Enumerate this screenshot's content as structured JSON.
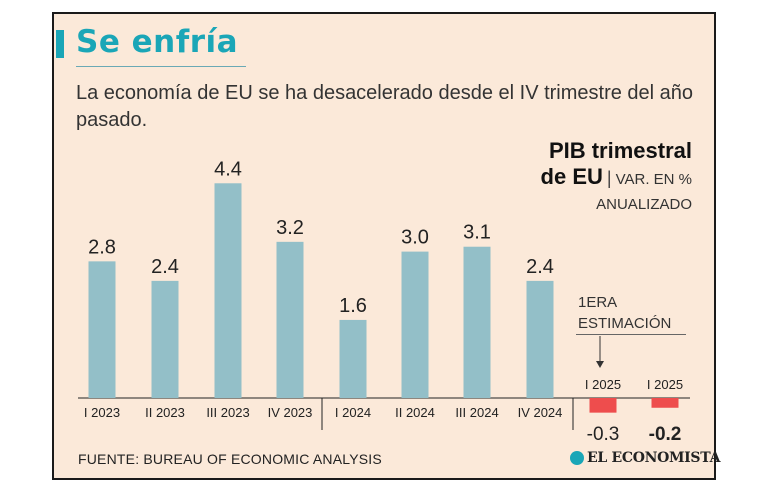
{
  "header": {
    "title": "Se enfría",
    "subtitle": "La economía de EU se ha desacelerado desde el IV trimestre del año pasado."
  },
  "legend": {
    "line1": "PIB trimestral",
    "line2_bold": "de EU",
    "separator": "|",
    "line2_small": "VAR. EN %",
    "line3": "ANUALIZADO"
  },
  "annotation": {
    "line1": "1ERA",
    "line2": "ESTIMACIÓN"
  },
  "footer": {
    "source": "FUENTE: BUREAU OF ECONOMIC ANALYSIS",
    "logo": "EL ECONOMISTA"
  },
  "chart_data": {
    "type": "bar",
    "categories": [
      "I 2023",
      "II 2023",
      "III 2023",
      "IV 2023",
      "I 2024",
      "II 2024",
      "III 2024",
      "IV 2024",
      "I 2025",
      "I 2025"
    ],
    "values": [
      2.8,
      2.4,
      4.4,
      3.2,
      1.6,
      3.0,
      3.1,
      2.4,
      -0.3,
      -0.2
    ],
    "value_labels": [
      "2.8",
      "2.4",
      "4.4",
      "3.2",
      "1.6",
      "3.0",
      "3.1",
      "2.4",
      "-0.3",
      "-0.2"
    ],
    "colors": {
      "positive": "#93bfc8",
      "negative": "#ee4d4d"
    }
  }
}
